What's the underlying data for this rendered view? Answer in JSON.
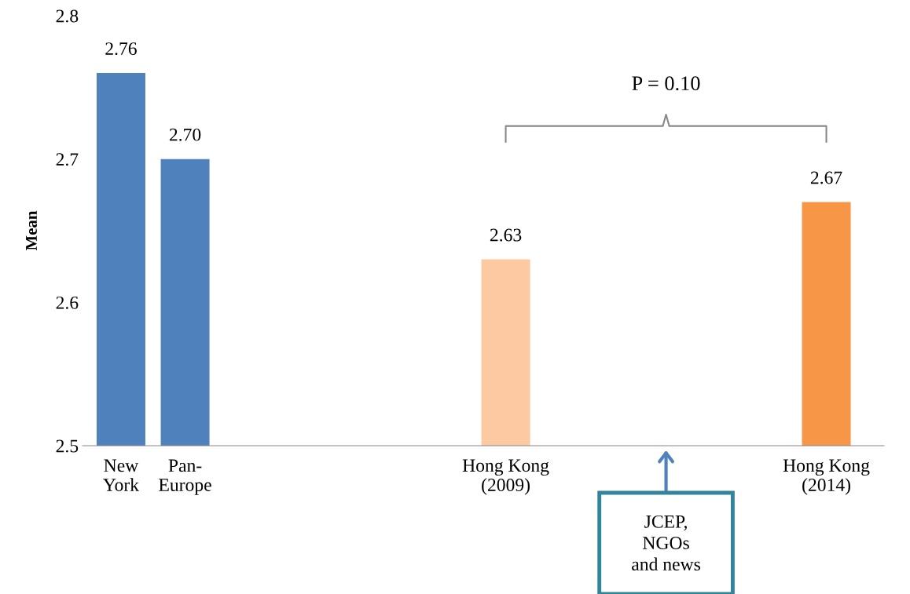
{
  "chart_data": {
    "type": "bar",
    "ylabel": "Mean",
    "categories": [
      "New\nYork",
      "Pan-\nEurope",
      null,
      null,
      null,
      null,
      "Hong Kong\n(2009)",
      null,
      null,
      null,
      null,
      "Hong Kong\n(2014)"
    ],
    "values": [
      2.76,
      2.7,
      null,
      null,
      null,
      null,
      2.63,
      null,
      null,
      null,
      null,
      2.67
    ],
    "colors": [
      "#4f81bd",
      "#4f81bd",
      null,
      null,
      null,
      null,
      "#fcc9a3",
      null,
      null,
      null,
      null,
      "#f79646"
    ],
    "ylim": [
      2.5,
      2.8
    ],
    "yticks": [
      2.5,
      2.6,
      2.7,
      2.8
    ],
    "grid": false,
    "value_labels": [
      "2.76",
      "2.70",
      null,
      null,
      null,
      null,
      "2.63",
      null,
      null,
      null,
      null,
      "2.67"
    ],
    "annotations": [
      "P = 0.10",
      "JCEP,\nNGOs\nand news"
    ]
  }
}
